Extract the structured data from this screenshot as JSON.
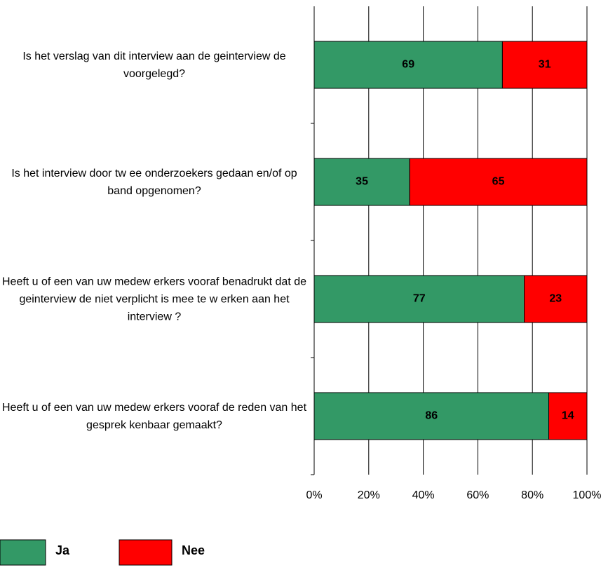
{
  "chart_data": {
    "type": "stacked-barh",
    "categories": [
      "Is het verslag van dit interview  aan de geinterview de voorgelegd?",
      "Is het interview  door tw ee onderzoekers gedaan en/of op band opgenomen?",
      "Heeft u of een van uw  medew erkers vooraf benadrukt dat de geinterview de niet verplicht is mee te w erken aan het interview ?",
      "Heeft u of een van uw  medew erkers vooraf de reden van het gesprek kenbaar gemaakt?"
    ],
    "series": [
      {
        "name": "Ja",
        "color": "#339966",
        "values": [
          69,
          35,
          77,
          86
        ]
      },
      {
        "name": "Nee",
        "color": "#ff0000",
        "values": [
          31,
          65,
          23,
          14
        ]
      }
    ],
    "xlim": [
      0,
      100
    ],
    "xticks": [
      {
        "value": 0,
        "label": "0%"
      },
      {
        "value": 20,
        "label": "20%"
      },
      {
        "value": 40,
        "label": "40%"
      },
      {
        "value": 60,
        "label": "60%"
      },
      {
        "value": 80,
        "label": "80%"
      },
      {
        "value": 100,
        "label": "100%"
      }
    ],
    "grid": true
  }
}
